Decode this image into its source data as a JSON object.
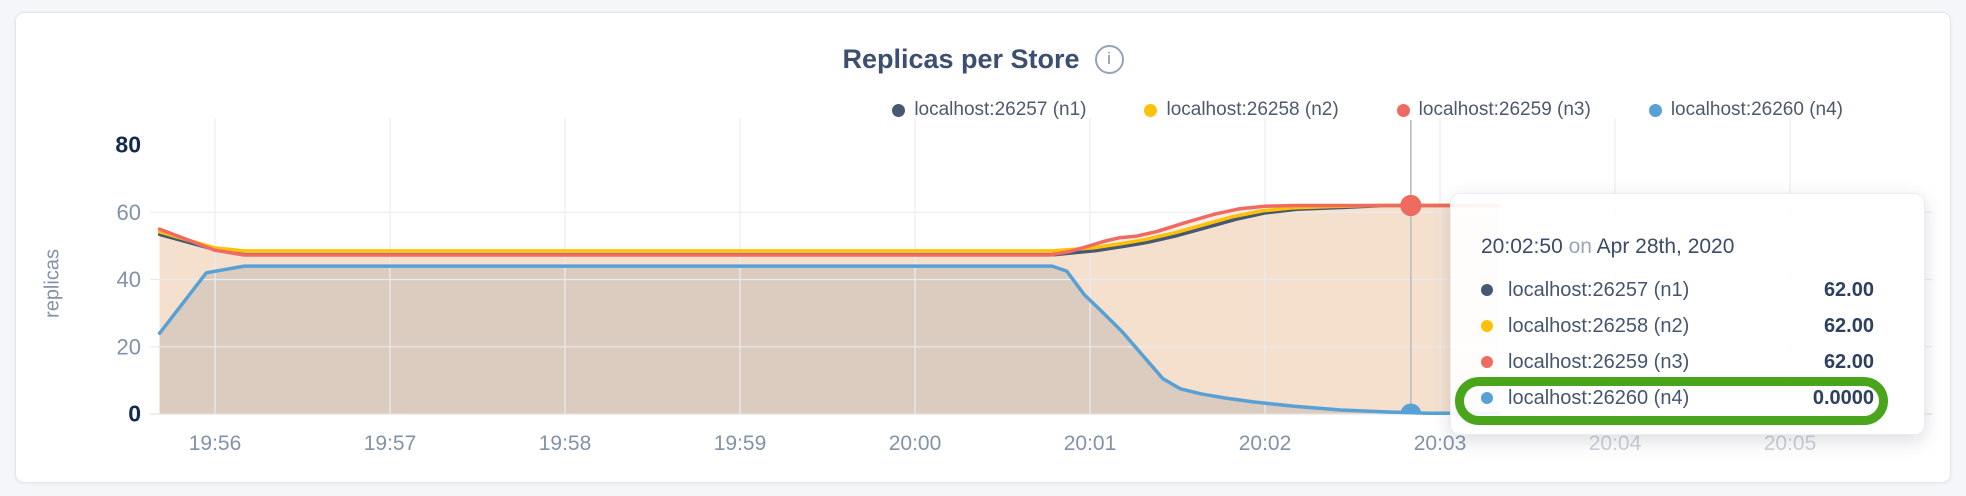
{
  "header": {
    "title": "Replicas per Store",
    "info_icon_glyph": "i"
  },
  "y_axis": {
    "label": "replicas",
    "ticks": [
      {
        "label": "80",
        "value": 80,
        "bold": true
      },
      {
        "label": "60",
        "value": 60,
        "bold": false
      },
      {
        "label": "40",
        "value": 40,
        "bold": false
      },
      {
        "label": "20",
        "value": 20,
        "bold": false
      },
      {
        "label": "0",
        "value": 0,
        "bold": true
      }
    ]
  },
  "x_axis": {
    "ticks": [
      {
        "label": "19:56",
        "muted": false
      },
      {
        "label": "19:57",
        "muted": false
      },
      {
        "label": "19:58",
        "muted": false
      },
      {
        "label": "19:59",
        "muted": false
      },
      {
        "label": "20:00",
        "muted": false
      },
      {
        "label": "20:01",
        "muted": false
      },
      {
        "label": "20:02",
        "muted": false
      },
      {
        "label": "20:03",
        "muted": false
      },
      {
        "label": "20:04",
        "muted": true
      },
      {
        "label": "20:05",
        "muted": true
      }
    ]
  },
  "legend": [
    {
      "label": "localhost:26257 (n1)",
      "color": "#475872"
    },
    {
      "label": "localhost:26258 (n2)",
      "color": "#fdc108"
    },
    {
      "label": "localhost:26259 (n3)",
      "color": "#ef6a61"
    },
    {
      "label": "localhost:26260 (n4)",
      "color": "#57a1d6"
    }
  ],
  "tooltip": {
    "time": "20:02:50",
    "on_word": "on",
    "date": "Apr 28th, 2020",
    "rows": [
      {
        "label": "localhost:26257 (n1)",
        "value": "62.00",
        "color": "#475872",
        "highlighted": false
      },
      {
        "label": "localhost:26258 (n2)",
        "value": "62.00",
        "color": "#fdc108",
        "highlighted": false
      },
      {
        "label": "localhost:26259 (n3)",
        "value": "62.00",
        "color": "#ef6a61",
        "highlighted": false
      },
      {
        "label": "localhost:26260 (n4)",
        "value": "0.0000",
        "color": "#57a1d6",
        "highlighted": true
      }
    ],
    "highlight_color": "#4aa51d"
  },
  "chart_data": {
    "type": "area",
    "title": "Replicas per Store",
    "ylabel": "replicas",
    "ylim": [
      0,
      80
    ],
    "y_gridlines": [
      60,
      40,
      20
    ],
    "x_tick_labels": [
      "19:56",
      "19:57",
      "19:58",
      "19:59",
      "20:00",
      "20:01",
      "20:02",
      "20:03",
      "20:04",
      "20:05"
    ],
    "x_unit": "seconds after 19:55:00",
    "grid": true,
    "legend_position": "top-right",
    "hover": {
      "time_label": "20:02:50",
      "t": 470,
      "values": [
        62,
        62,
        62,
        0
      ]
    },
    "series": [
      {
        "name": "localhost:26257 (n1)",
        "color": "#475872",
        "fill": null,
        "points": [
          [
            41,
            53.4
          ],
          [
            60,
            48.9
          ],
          [
            70,
            47.4
          ],
          [
            348,
            47.4
          ],
          [
            362,
            48.6
          ],
          [
            372,
            49.9
          ],
          [
            380,
            51.1
          ],
          [
            390,
            53.1
          ],
          [
            400,
            55.5
          ],
          [
            410,
            57.9
          ],
          [
            420,
            59.8
          ],
          [
            431,
            60.9
          ],
          [
            446,
            61.4
          ],
          [
            461,
            62
          ],
          [
            500,
            62
          ]
        ]
      },
      {
        "name": "localhost:26258 (n2)",
        "color": "#fdc108",
        "fill": "rgba(235,196,160,0.30)",
        "points": [
          [
            41,
            54.2
          ],
          [
            60,
            49.4
          ],
          [
            70,
            48.5
          ],
          [
            347,
            48.5
          ],
          [
            361,
            49.4
          ],
          [
            371,
            50.7
          ],
          [
            379,
            51.9
          ],
          [
            389,
            53.9
          ],
          [
            399,
            56.3
          ],
          [
            409,
            58.7
          ],
          [
            419,
            60.4
          ],
          [
            429,
            61.3
          ],
          [
            443,
            61.7
          ],
          [
            458,
            62
          ],
          [
            500,
            62
          ]
        ]
      },
      {
        "name": "localhost:26259 (n3)",
        "color": "#ef6a61",
        "fill": "rgba(235,196,160,0.30)",
        "points": [
          [
            41,
            55
          ],
          [
            60,
            48.7
          ],
          [
            70,
            47.3
          ],
          [
            346,
            47.3
          ],
          [
            353,
            48.3
          ],
          [
            359,
            49.8
          ],
          [
            365,
            51.4
          ],
          [
            370,
            52.4
          ],
          [
            376,
            52.9
          ],
          [
            383,
            54.3
          ],
          [
            393,
            57
          ],
          [
            403,
            59.5
          ],
          [
            411,
            61
          ],
          [
            420,
            61.8
          ],
          [
            430,
            62
          ],
          [
            500,
            62
          ]
        ]
      },
      {
        "name": "localhost:26260 (n4)",
        "color": "#57a1d6",
        "fill": "rgba(104,114,126,0.18)",
        "points": [
          [
            41,
            24
          ],
          [
            57,
            42
          ],
          [
            70,
            44
          ],
          [
            347,
            44
          ],
          [
            352,
            42.5
          ],
          [
            358,
            35.5
          ],
          [
            364,
            30.5
          ],
          [
            371,
            24.5
          ],
          [
            378,
            17.5
          ],
          [
            385,
            10.5
          ],
          [
            391,
            7.5
          ],
          [
            398,
            6
          ],
          [
            406,
            4.8
          ],
          [
            416,
            3.6
          ],
          [
            430,
            2.3
          ],
          [
            446,
            1.2
          ],
          [
            462,
            0.6
          ],
          [
            476,
            0.25
          ],
          [
            500,
            0.2
          ]
        ]
      }
    ]
  }
}
